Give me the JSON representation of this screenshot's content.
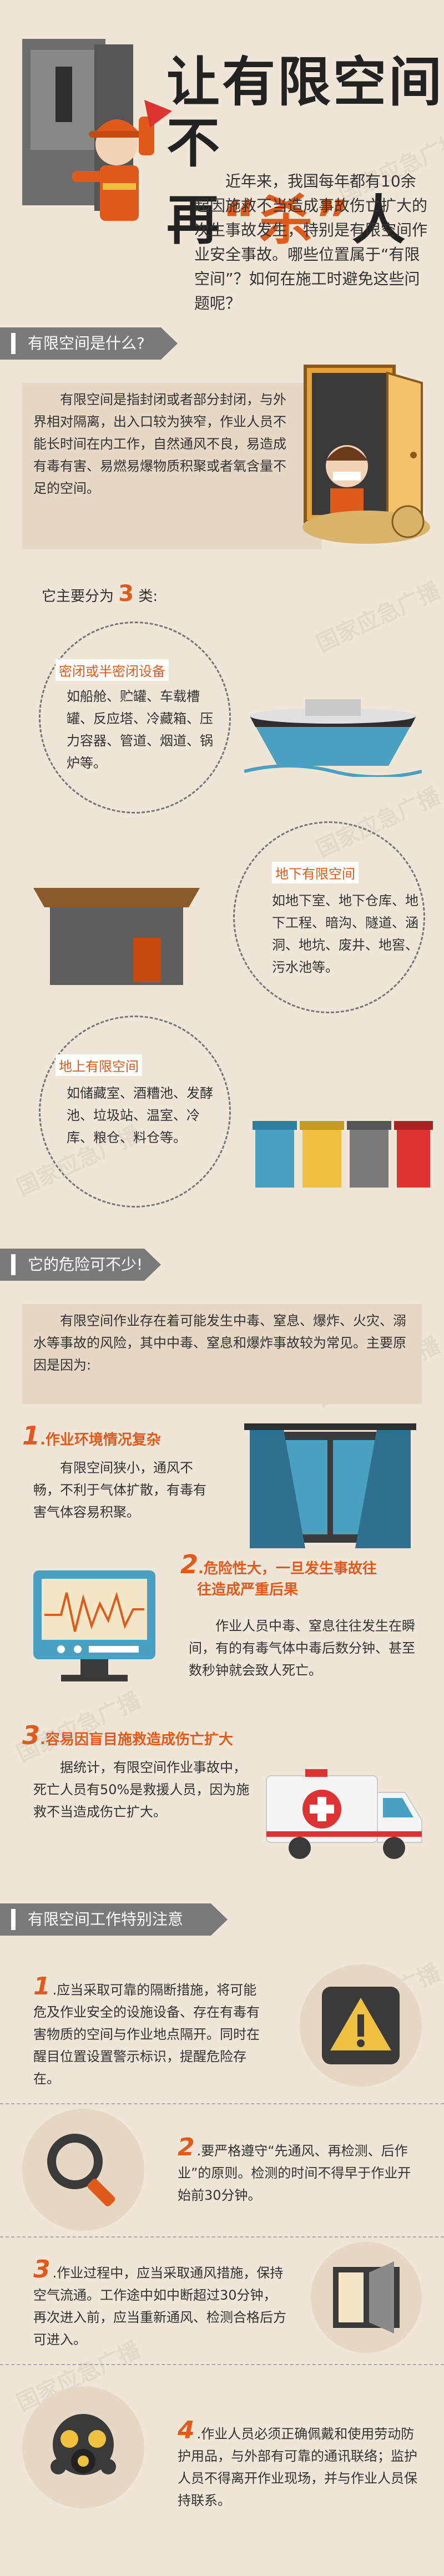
{
  "title": {
    "line1": "让有限空间",
    "line2_a": "不再",
    "line2_b": "“杀”",
    "line2_c": "人"
  },
  "intro": "近年来，我国每年都有10余起因施救不当造成事故伤亡扩大的次生事故发生，特别是有限空间作业安全事故。哪些位置属于“有限空间”？如何在施工时避免这些问题呢？",
  "watermark": "国家应急广播",
  "section1": {
    "title": "有限空间是什么?",
    "definition": "有限空间是指封闭或者部分封闭，与外界相对隔离，出入口较为狭窄，作业人员不能长时间在内工作，自然通风不良，易造成有毒有害、易燃易爆物质积聚或者氧含量不足的空间。",
    "categories_intro_a": "它主要分为",
    "categories_count": "3",
    "categories_intro_b": "类:",
    "cat1": {
      "label": "密闭或半密闭设备",
      "text": "如船舱、贮罐、车载槽罐、反应塔、冷藏箱、压力容器、管道、烟道、锅炉等。"
    },
    "cat2": {
      "label": "地下有限空间",
      "text": "如地下室、地下仓库、地下工程、暗沟、隧道、涵洞、地坑、废井、地窖、污水池等。"
    },
    "cat3": {
      "label": "地上有限空间",
      "text": "如储藏室、酒糟池、发酵池、垃圾站、温室、冷库、粮仓、料仓等。"
    }
  },
  "section2": {
    "title": "它的危险可不少!",
    "intro": "有限空间作业存在着可能发生中毒、窒息、爆炸、火灾、溺水等事故的风险，其中中毒、窒息和爆炸事故较为常见。主要原因是因为:",
    "point1": {
      "num": "1",
      "title": ".作业环境情况复杂",
      "text": "有限空间狭小，通风不畅，不利于气体扩散，有毒有害气体容易积聚。"
    },
    "point2": {
      "num": "2",
      "title_a": ".危险性大，一旦发生事故往",
      "title_b": "往造成严重后果",
      "text": "作业人员中毒、窒息往往发生在瞬间，有的有毒气体中毒后数分钟、甚至数秒钟就会致人死亡。"
    },
    "point3": {
      "num": "3",
      "title": ".容易因盲目施救造成伤亡扩大",
      "text": "据统计，有限空间作业事故中，死亡人员有50%是救援人员，因为施救不当造成伤亡扩大。"
    }
  },
  "section3": {
    "title": "有限空间工作特别注意",
    "tip1": {
      "num": "1",
      "text": ".应当采取可靠的隔断措施，将可能危及作业安全的设施设备、存在有毒有害物质的空间与作业地点隔开。同时在醒目位置设置警示标识，提醒危险存在。"
    },
    "tip2": {
      "num": "2",
      "text": ".要严格遵守“先通风、再检测、后作业”的原则。检测的时间不得早于作业开始前30分钟。"
    },
    "tip3": {
      "num": "3",
      "text": ".作业过程中，应当采取通风措施，保持空气流通。工作途中如中断超过30分钟，再次进入前，应当重新通风、检测合格后方可进入。"
    },
    "tip4": {
      "num": "4",
      "text": ".作业人员必须正确佩戴和使用劳动防护用品，与外部有可靠的通讯联络；监护人员不得离开作业现场，并与作业人员保持联系。"
    }
  },
  "colors": {
    "accent": "#e05a1c",
    "background": "#efe6d8",
    "bar": "#7a7a7a",
    "box": "#e6d8c4"
  },
  "icons": [
    "worker-icon",
    "door-icon",
    "ship-icon",
    "underground-icon",
    "trash-bins-icon",
    "window-icon",
    "monitor-icon",
    "ambulance-icon",
    "warning-icon",
    "magnifier-icon",
    "vent-window-icon",
    "gas-mask-icon"
  ]
}
